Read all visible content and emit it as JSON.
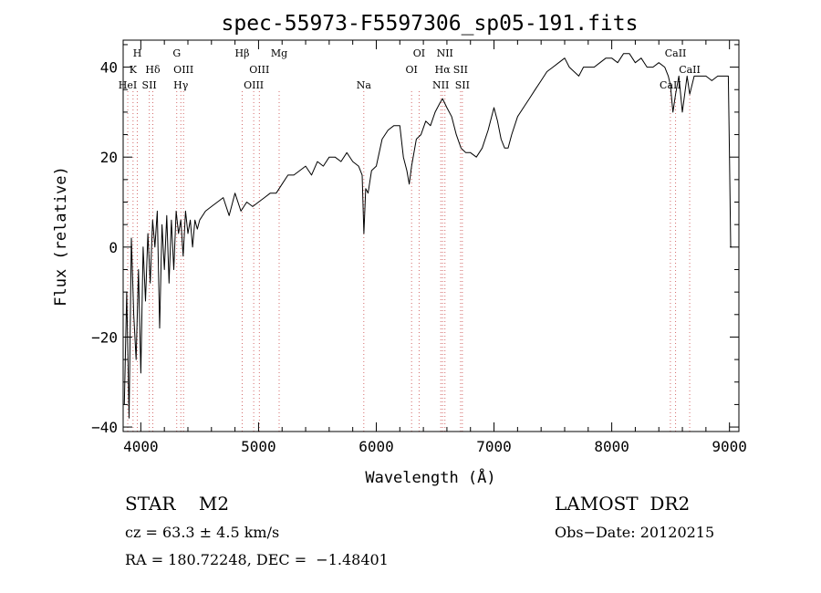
{
  "chart_data": {
    "type": "line",
    "title": "spec-55973-F5597306_sp05-191.fits",
    "xlabel": "Wavelength (Å)",
    "ylabel": "Flux (relative)",
    "xlim": [
      3850,
      9080
    ],
    "ylim": [
      -41,
      46
    ],
    "x_ticks": [
      {
        "value": 4000,
        "label": "4000"
      },
      {
        "value": 5000,
        "label": "5000"
      },
      {
        "value": 6000,
        "label": "6000"
      },
      {
        "value": 7000,
        "label": "7000"
      },
      {
        "value": 8000,
        "label": "8000"
      },
      {
        "value": 9000,
        "label": "9000"
      }
    ],
    "y_ticks": [
      {
        "value": 40,
        "label": "40"
      },
      {
        "value": 20,
        "label": "20"
      },
      {
        "value": 0,
        "label": "0"
      },
      {
        "value": -20,
        "label": "−20"
      },
      {
        "value": -40,
        "label": "−40"
      }
    ],
    "grid": false,
    "line_color": "#000000",
    "marker_color": "#d46a6a",
    "series": [
      {
        "x": [
          3860,
          3880,
          3900,
          3920,
          3940,
          3960,
          3980,
          4000,
          4020,
          4040,
          4060,
          4080,
          4100,
          4120,
          4140,
          4160,
          4180,
          4200,
          4220,
          4240,
          4260,
          4280,
          4300,
          4320,
          4340,
          4360,
          4380,
          4400,
          4420,
          4440,
          4460,
          4480,
          4500,
          4550,
          4600,
          4650,
          4700,
          4750,
          4800,
          4850,
          4900,
          4950,
          5000,
          5050,
          5100,
          5150,
          5200,
          5250,
          5300,
          5350,
          5400,
          5450,
          5500,
          5550,
          5600,
          5650,
          5700,
          5750,
          5800,
          5850,
          5880,
          5895,
          5910,
          5930,
          5960,
          6000,
          6050,
          6100,
          6150,
          6200,
          6230,
          6260,
          6280,
          6300,
          6340,
          6380,
          6420,
          6460,
          6500,
          6540,
          6563,
          6600,
          6640,
          6680,
          6720,
          6760,
          6800,
          6850,
          6900,
          6950,
          7000,
          7030,
          7060,
          7090,
          7120,
          7150,
          7200,
          7250,
          7300,
          7350,
          7400,
          7450,
          7500,
          7550,
          7600,
          7640,
          7680,
          7720,
          7760,
          7800,
          7850,
          7900,
          7950,
          8000,
          8050,
          8100,
          8150,
          8200,
          8250,
          8300,
          8350,
          8400,
          8450,
          8480,
          8498,
          8520,
          8542,
          8570,
          8600,
          8640,
          8662,
          8700,
          8750,
          8800,
          8850,
          8900,
          8950,
          8990,
          9000,
          9010,
          9020
        ],
        "y": [
          -35,
          -10,
          -38,
          2,
          -15,
          -25,
          -5,
          -28,
          0,
          -12,
          3,
          -8,
          6,
          0,
          8,
          -18,
          5,
          -5,
          7,
          -8,
          6,
          -5,
          8,
          3,
          6,
          -2,
          8,
          3,
          6,
          0,
          6,
          4,
          6,
          8,
          9,
          10,
          11,
          7,
          12,
          8,
          10,
          9,
          10,
          11,
          12,
          12,
          14,
          16,
          16,
          17,
          18,
          16,
          19,
          18,
          20,
          20,
          19,
          21,
          19,
          18,
          16,
          3,
          13,
          12,
          17,
          18,
          24,
          26,
          27,
          27,
          20,
          17,
          14,
          18,
          24,
          25,
          28,
          27,
          30,
          32,
          33,
          31,
          29,
          25,
          22,
          21,
          21,
          20,
          22,
          26,
          31,
          28,
          24,
          22,
          22,
          25,
          29,
          31,
          33,
          35,
          37,
          39,
          40,
          41,
          42,
          40,
          39,
          38,
          40,
          40,
          40,
          41,
          42,
          42,
          41,
          43,
          43,
          41,
          42,
          40,
          40,
          41,
          40,
          38,
          36,
          30,
          34,
          38,
          30,
          38,
          34,
          38,
          38,
          38,
          37,
          38,
          38,
          38,
          20,
          0,
          0
        ]
      }
    ],
    "line_markers": [
      {
        "x": 3889,
        "labels": [
          "HeI"
        ],
        "rows": [
          2
        ]
      },
      {
        "x": 3934,
        "labels": [
          "K"
        ],
        "rows": [
          1
        ]
      },
      {
        "x": 3970,
        "labels": [
          "H"
        ],
        "rows": [
          0
        ]
      },
      {
        "x": 4072,
        "labels": [
          "SII"
        ],
        "rows": [
          2
        ]
      },
      {
        "x": 4102,
        "labels": [
          "Hδ"
        ],
        "rows": [
          1
        ]
      },
      {
        "x": 4305,
        "labels": [
          "G"
        ],
        "rows": [
          0
        ]
      },
      {
        "x": 4340,
        "labels": [
          "Hγ"
        ],
        "rows": [
          2
        ]
      },
      {
        "x": 4363,
        "labels": [
          "OIII"
        ],
        "rows": [
          1
        ]
      },
      {
        "x": 4861,
        "labels": [
          "Hβ"
        ],
        "rows": [
          0
        ]
      },
      {
        "x": 4959,
        "labels": [
          "OIII"
        ],
        "rows": [
          2
        ]
      },
      {
        "x": 5007,
        "labels": [
          "OIII"
        ],
        "rows": [
          1
        ]
      },
      {
        "x": 5175,
        "labels": [
          "Mg"
        ],
        "rows": [
          0
        ]
      },
      {
        "x": 5894,
        "labels": [
          "Na"
        ],
        "rows": [
          2
        ]
      },
      {
        "x": 6300,
        "labels": [
          "OI"
        ],
        "rows": [
          1
        ]
      },
      {
        "x": 6364,
        "labels": [
          "OI"
        ],
        "rows": [
          0
        ]
      },
      {
        "x": 6548,
        "labels": [
          "NII"
        ],
        "rows": [
          2
        ]
      },
      {
        "x": 6563,
        "labels": [
          "Hα"
        ],
        "rows": [
          1
        ]
      },
      {
        "x": 6583,
        "labels": [
          "NII"
        ],
        "rows": [
          0
        ]
      },
      {
        "x": 6716,
        "labels": [
          "SII"
        ],
        "rows": [
          1
        ]
      },
      {
        "x": 6731,
        "labels": [
          "SII"
        ],
        "rows": [
          2
        ]
      },
      {
        "x": 8498,
        "labels": [
          "CaII"
        ],
        "rows": [
          2
        ]
      },
      {
        "x": 8542,
        "labels": [
          "CaII"
        ],
        "rows": [
          0
        ]
      },
      {
        "x": 8662,
        "labels": [
          "CaII"
        ],
        "rows": [
          1
        ]
      }
    ]
  },
  "info": {
    "object_class": "STAR    M2",
    "survey": "LAMOST  DR2",
    "cz": "cz = 63.3 ± 4.5 km/s",
    "obs_date": "Obs−Date: 20120215",
    "radec": "RA = 180.72248, DEC =  −1.48401"
  }
}
